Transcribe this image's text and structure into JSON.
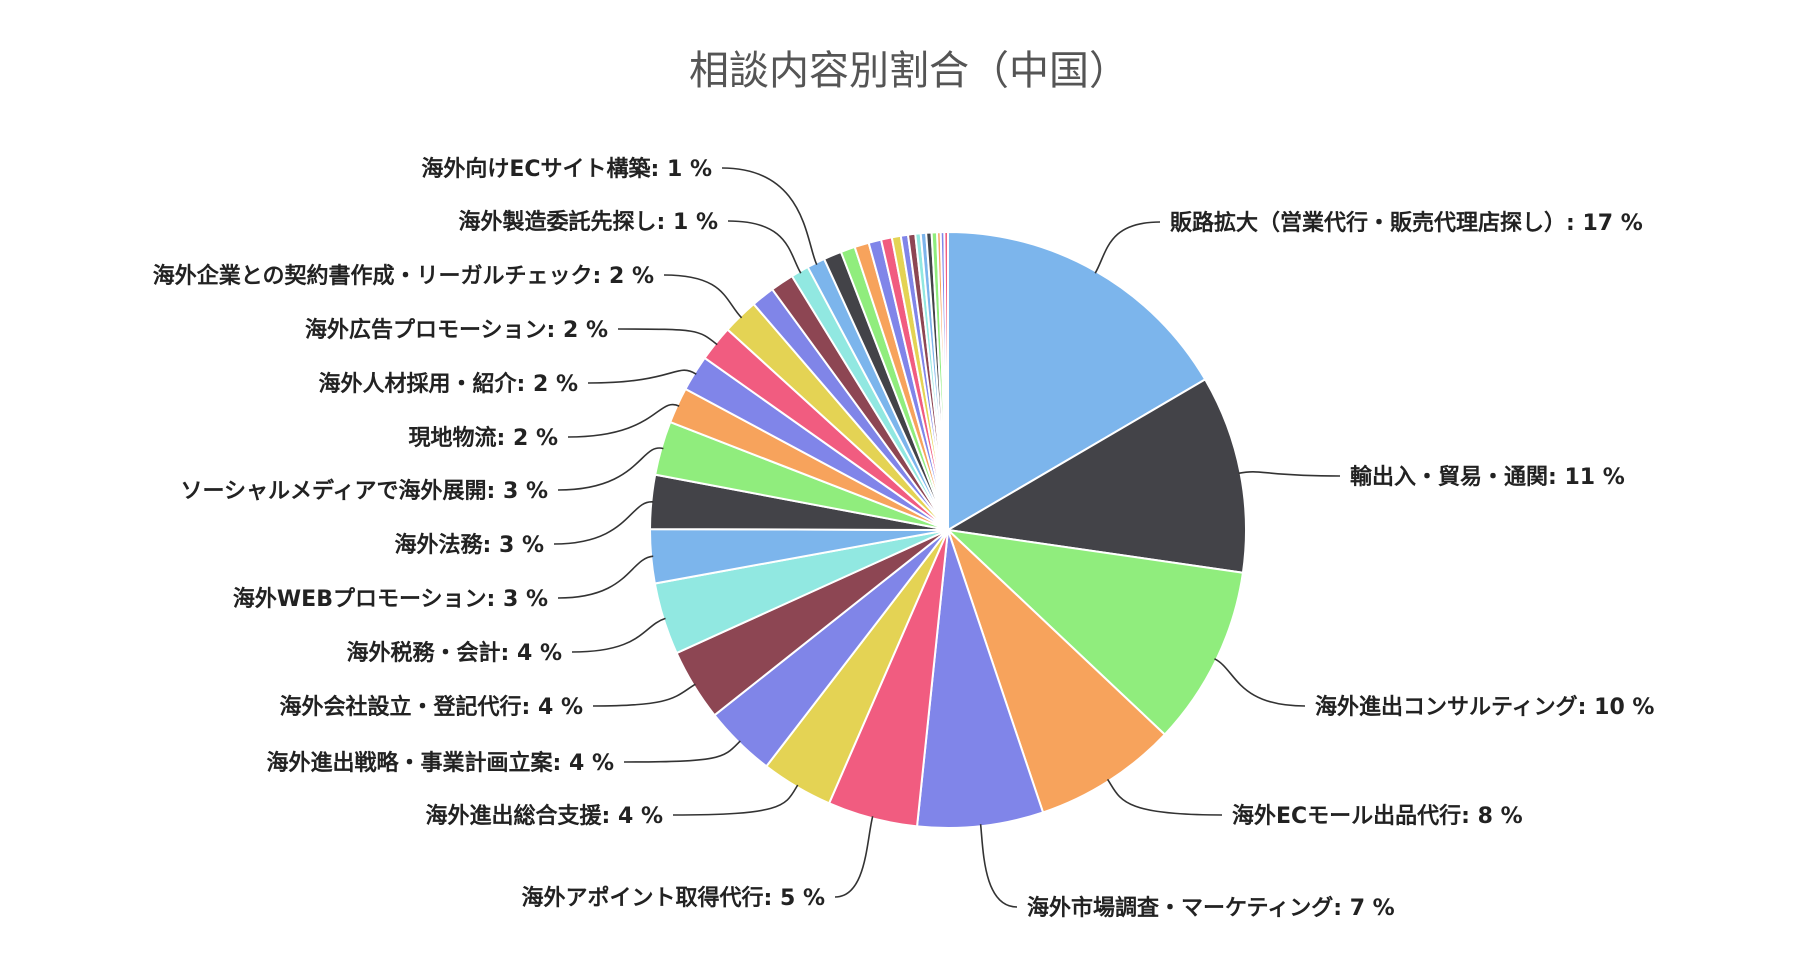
{
  "chart_data": {
    "type": "pie",
    "title": "相談内容別割合（中国）",
    "slices": [
      {
        "label": "販路拡大（営業代行・販売代理店探し）",
        "value": 17,
        "color": "#7cb5ec"
      },
      {
        "label": "輸出入・貿易・通関",
        "value": 11,
        "color": "#434348"
      },
      {
        "label": "海外進出コンサルティング",
        "value": 10,
        "color": "#90ed7d"
      },
      {
        "label": "海外ECモール出品代行",
        "value": 8,
        "color": "#f7a35c"
      },
      {
        "label": "海外市場調査・マーケティング",
        "value": 7,
        "color": "#8085e9"
      },
      {
        "label": "海外アポイント取得代行",
        "value": 5,
        "color": "#f15c80"
      },
      {
        "label": "海外進出総合支援",
        "value": 4,
        "color": "#e4d354"
      },
      {
        "label": "海外進出戦略・事業計画立案",
        "value": 4,
        "color": "#8085e8"
      },
      {
        "label": "海外会社設立・登記代行",
        "value": 4,
        "color": "#8d4653"
      },
      {
        "label": "海外税務・会計",
        "value": 4,
        "color": "#91e8e1"
      },
      {
        "label": "海外WEBプロモーション",
        "value": 3,
        "color": "#7cb5ec"
      },
      {
        "label": "海外法務",
        "value": 3,
        "color": "#434348"
      },
      {
        "label": "ソーシャルメディアで海外展開",
        "value": 3,
        "color": "#90ed7d"
      },
      {
        "label": "現地物流",
        "value": 2,
        "color": "#f7a35c"
      },
      {
        "label": "海外人材採用・紹介",
        "value": 2,
        "color": "#8085e9"
      },
      {
        "label": "海外広告プロモーション",
        "value": 2,
        "color": "#f15c80"
      },
      {
        "label": "海外企業との契約書作成・リーガルチェック",
        "value": 2,
        "color": "#e4d354"
      },
      {
        "label": "",
        "value": 1.3,
        "color": "#8085e8"
      },
      {
        "label": "",
        "value": 1.3,
        "color": "#8d4653"
      },
      {
        "label": "海外製造委託先探し",
        "value": 1,
        "color": "#91e8e1"
      },
      {
        "label": "海外向けECサイト構築",
        "value": 1,
        "color": "#7cb5ec"
      },
      {
        "label": "",
        "value": 1,
        "color": "#434348"
      },
      {
        "label": "",
        "value": 0.8,
        "color": "#90ed7d"
      },
      {
        "label": "",
        "value": 0.8,
        "color": "#f7a35c"
      },
      {
        "label": "",
        "value": 0.7,
        "color": "#8085e9"
      },
      {
        "label": "",
        "value": 0.6,
        "color": "#f15c80"
      },
      {
        "label": "",
        "value": 0.5,
        "color": "#e4d354"
      },
      {
        "label": "",
        "value": 0.4,
        "color": "#8085e8"
      },
      {
        "label": "",
        "value": 0.4,
        "color": "#8d4653"
      },
      {
        "label": "",
        "value": 0.3,
        "color": "#91e8e1"
      },
      {
        "label": "",
        "value": 0.3,
        "color": "#7cb5ec"
      },
      {
        "label": "",
        "value": 0.3,
        "color": "#434348"
      },
      {
        "label": "",
        "value": 0.3,
        "color": "#90ed7d"
      },
      {
        "label": "",
        "value": 0.2,
        "color": "#f7a35c"
      },
      {
        "label": "",
        "value": 0.2,
        "color": "#8085e9"
      },
      {
        "label": "",
        "value": 0.2,
        "color": "#f15c80"
      }
    ],
    "legend": "none"
  }
}
